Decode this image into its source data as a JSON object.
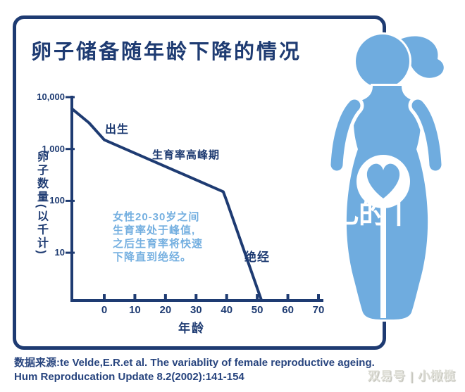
{
  "title": "卵子储备随年龄下降的情况",
  "chart_data": {
    "type": "line",
    "title": "卵子储备随年龄下降的情况",
    "xlabel": "年龄",
    "ylabel": "卵子数量(以千计)",
    "x_ticks": [
      "0",
      "10",
      "20",
      "30",
      "40",
      "50",
      "60",
      "70"
    ],
    "y_tick_labels": [
      "10,000",
      "1,000",
      "100",
      "10"
    ],
    "y_scale": "log",
    "y_unit": "thousands of eggs",
    "xlim": [
      -10.6,
      71
    ],
    "series": [
      {
        "name": "卵子数量",
        "points": [
          {
            "age": -10.6,
            "value": 6000
          },
          {
            "age": -5.0,
            "value": 3200
          },
          {
            "age": 0,
            "value": 1500
          },
          {
            "age": 38.9,
            "value": 150
          },
          {
            "age": 40.0,
            "value": 100
          },
          {
            "age": 51.4,
            "value": 1.2
          }
        ]
      }
    ],
    "annotations": [
      {
        "id": "birth",
        "label": "出生",
        "age": 0
      },
      {
        "id": "peak",
        "label": "生育率高峰期",
        "age_range": [
          20,
          30
        ]
      },
      {
        "id": "menopause",
        "label": "绝经",
        "age": 51
      }
    ],
    "note": "女性20-30岁之间\n生育率处于峰值,\n之后生育率将快速\n下降直到绝经。",
    "grid": false,
    "legend": "none"
  },
  "source": {
    "line1": "数据来源:te Velde,E.R.et al. The variablity of female reproductive ageing.",
    "line2": "Hum Reproducation Update 8.2(2002):141-154"
  },
  "watermarks": {
    "center": "乚的丨",
    "bottom_right": "双易号 | 小橄榄"
  },
  "icons": {
    "woman_figure": "pregnant-woman-silhouette",
    "heart": "heart-icon"
  },
  "colors": {
    "navy": "#1E3B72",
    "light_blue": "#6FACDF",
    "note_blue": "#74AFE0",
    "source_navy": "#27447E",
    "watermark_gray": "#DCDCD4"
  }
}
